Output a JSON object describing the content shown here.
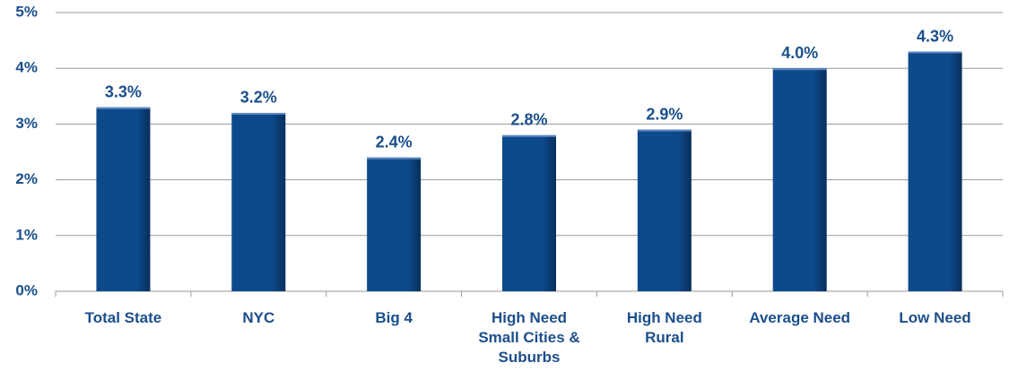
{
  "chart_data": {
    "type": "bar",
    "categories": [
      "Total State",
      "NYC",
      "Big 4",
      "High Need Small Cities & Suburbs",
      "High Need Rural",
      "Average Need",
      "Low Need"
    ],
    "values": [
      3.3,
      3.2,
      2.4,
      2.8,
      2.9,
      4.0,
      4.3
    ],
    "value_labels": [
      "3.3%",
      "3.2%",
      "2.4%",
      "2.8%",
      "2.9%",
      "4.0%",
      "4.3%"
    ],
    "color": "#0d4a8c",
    "ylim": [
      0,
      5
    ],
    "yticks": [
      {
        "value": 0,
        "label": "0%"
      },
      {
        "value": 1,
        "label": "1%"
      },
      {
        "value": 2,
        "label": "2%"
      },
      {
        "value": 3,
        "label": "3%"
      },
      {
        "value": 4,
        "label": "4%"
      },
      {
        "value": 5,
        "label": "5%"
      }
    ],
    "grid": true
  }
}
